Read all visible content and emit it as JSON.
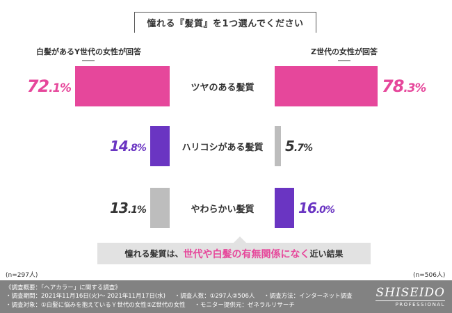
{
  "header": {
    "question": "憧れる『髪質』を1つ選んでください"
  },
  "groups": {
    "left_label": "白髪があるY世代の女性が回答",
    "right_label": "Z世代の女性が回答",
    "left_n": "(n=297人)",
    "right_n": "(n=506人)"
  },
  "colors": {
    "pink": "#e6479b",
    "purple": "#6a35c2",
    "gray": "#bdbdbd"
  },
  "chart_data": {
    "type": "bar",
    "categories": [
      "ツヤのある髪質",
      "ハリコシがある髪質",
      "やわらかい髪質"
    ],
    "series": [
      {
        "name": "白髪があるY世代の女性が回答",
        "values": [
          72.1,
          14.8,
          13.1
        ],
        "labels": [
          "72.1%",
          "14.8%",
          "13.1%"
        ],
        "colors": [
          "#e6479b",
          "#6a35c2",
          "#bdbdbd"
        ]
      },
      {
        "name": "Z世代の女性が回答",
        "values": [
          78.3,
          5.7,
          16.0
        ],
        "labels": [
          "78.3%",
          "5.7%",
          "16.0%"
        ],
        "colors": [
          "#e6479b",
          "#bdbdbd",
          "#6a35c2"
        ]
      }
    ],
    "layout": "butterfly"
  },
  "conclusion": {
    "part1": "憧れる髪質は、",
    "part2": "世代や白髪の有無関係になく",
    "part3": "近い結果"
  },
  "footer": {
    "title": "《調査概要：「ヘアカラー」に関する調査》",
    "line1": [
      "・調査期間：2021年11月16日(火)〜 2021年11月17日(水)",
      "・調査人数：①297人②506人",
      "・調査方法：インターネット調査"
    ],
    "line2": [
      "・調査対象：①白髪に悩みを抱えているＹ世代の女性②Z世代の女性",
      "・モニター提供元：ゼネラルリサーチ"
    ],
    "brand_main": "SHISEIDO",
    "brand_sub": "PROFESSIONAL"
  }
}
